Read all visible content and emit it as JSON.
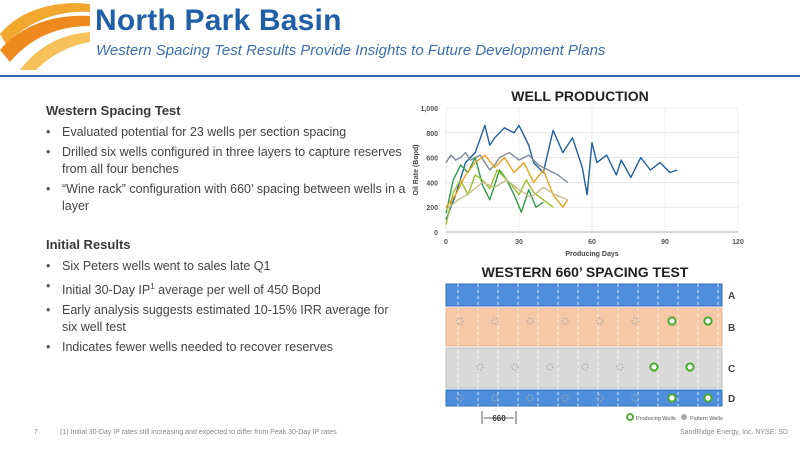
{
  "header": {
    "title": "North Park Basin",
    "subtitle": "Western Spacing Test Results Provide Insights to Future Development Plans"
  },
  "left": {
    "section1_heading": "Western Spacing Test",
    "section1_bullets": [
      "Evaluated potential for 23 wells per section spacing",
      "Drilled six wells configured in three layers to capture reserves from all four benches",
      "“Wine rack” configuration with 660’ spacing between wells in a layer"
    ],
    "section2_heading": "Initial Results",
    "section2_bullets": [
      "Six Peters wells went to sales late Q1",
      "Initial 30-Day IP",
      "Early analysis suggests estimated 10-15% IRR average for six well test",
      "Indicates fewer wells needed to recover reserves"
    ],
    "ip_sup": "1",
    "ip_tail": " average per well of 450 Bopd"
  },
  "chart_data": {
    "type": "line",
    "title": "WELL PRODUCTION",
    "xlabel": "Producing Days",
    "ylabel": "Oil Rate (Bopd)",
    "xlim": [
      0,
      120
    ],
    "ylim": [
      0,
      1000
    ],
    "xticks": [
      "0",
      "30",
      "60",
      "90",
      "120"
    ],
    "yticks": [
      "0",
      "200",
      "400",
      "600",
      "800",
      "1,000"
    ],
    "grid": true,
    "series": [
      {
        "color": "#1f5f9e",
        "x": [
          0,
          4,
          8,
          12,
          16,
          18,
          20,
          24,
          28,
          30,
          34,
          36,
          40,
          44,
          48,
          52,
          56,
          58,
          60,
          62,
          66,
          70,
          72,
          76,
          80,
          84,
          88,
          90,
          92,
          95
        ],
        "y": [
          100,
          300,
          560,
          640,
          860,
          700,
          760,
          840,
          800,
          860,
          700,
          560,
          480,
          820,
          640,
          760,
          520,
          300,
          720,
          560,
          620,
          460,
          580,
          440,
          600,
          500,
          560,
          520,
          480,
          500
        ]
      },
      {
        "color": "#7d8a96",
        "x": [
          0,
          2,
          4,
          6,
          8,
          10,
          12,
          14,
          16,
          18,
          20,
          22,
          26,
          30,
          34,
          38,
          42,
          46,
          50
        ],
        "y": [
          560,
          620,
          580,
          600,
          640,
          580,
          600,
          620,
          560,
          500,
          540,
          600,
          640,
          580,
          620,
          540,
          500,
          460,
          400
        ]
      },
      {
        "color": "#2e9b48",
        "x": [
          0,
          3,
          6,
          9,
          12,
          15,
          18,
          20,
          22,
          25,
          28,
          31,
          34,
          37,
          40
        ],
        "y": [
          150,
          420,
          540,
          480,
          600,
          380,
          260,
          380,
          500,
          420,
          300,
          160,
          340,
          200,
          240
        ]
      },
      {
        "color": "#9cbf2a",
        "x": [
          0,
          3,
          6,
          9,
          12,
          15,
          18,
          21,
          24,
          27,
          30,
          33,
          36,
          40,
          44
        ],
        "y": [
          60,
          320,
          420,
          300,
          460,
          420,
          350,
          500,
          440,
          380,
          300,
          420,
          320,
          260,
          200
        ]
      },
      {
        "color": "#e6a21a",
        "x": [
          0,
          4,
          8,
          12,
          16,
          20,
          24,
          28,
          32,
          36,
          40,
          44,
          48,
          50
        ],
        "y": [
          200,
          300,
          460,
          560,
          620,
          520,
          600,
          480,
          560,
          400,
          500,
          300,
          200,
          260
        ]
      },
      {
        "color": "#c9bf8e",
        "x": [
          0,
          5,
          10,
          15,
          20,
          25,
          30,
          35,
          40,
          45,
          50
        ],
        "y": [
          180,
          260,
          320,
          400,
          360,
          420,
          340,
          280,
          360,
          300,
          260
        ]
      }
    ]
  },
  "spacing_test": {
    "title": "WESTERN 660’ SPACING TEST",
    "layers": [
      "A",
      "B",
      "C",
      "D"
    ],
    "spacing_label": "660",
    "legend_producing": "Producing Wells",
    "legend_pattern": "Pattern Wells",
    "colors": {
      "layer_a": "#4d8fdc",
      "layer_b": "#f6c8a6",
      "layer_c": "#d9d9d9",
      "layer_d": "#4d8fdc",
      "producing": "#4aa82e",
      "pattern": "#a8a8a8"
    }
  },
  "footer": {
    "page": "7",
    "footnote": "(1) Initial 30-Day IP rates still increasing and expected to differ from Peak 30-Day IP rates",
    "company": "SandRidge Energy, Inc. NYSE: SD"
  }
}
